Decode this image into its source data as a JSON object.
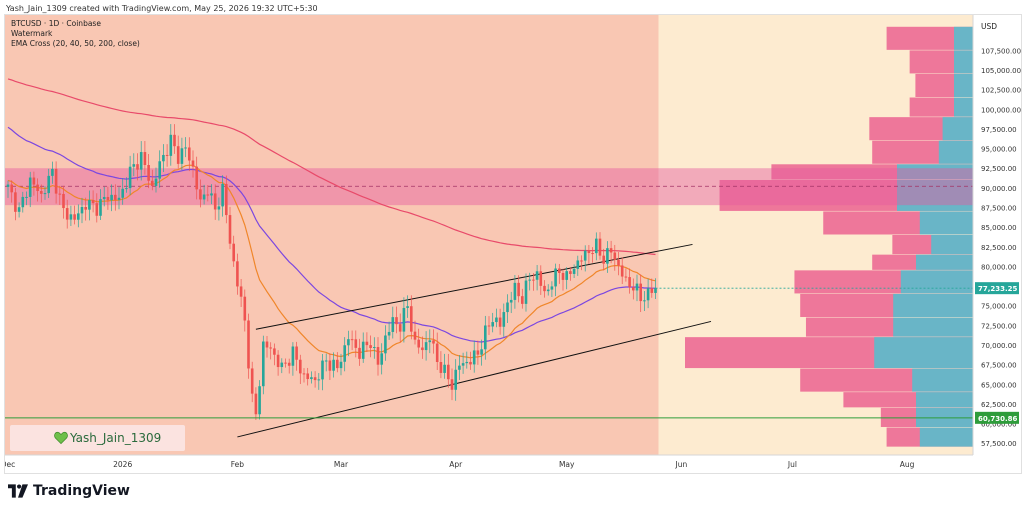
{
  "header": {
    "credit": "Yash_Jain_1309 created with TradingView.com, May 25, 2026 19:32 UTC+5:30"
  },
  "legend": {
    "symbol": "BTCUSD · 1D · Coinbase",
    "watermark": "Watermark",
    "indicator": "EMA Cross (20, 40, 50, 200, close)"
  },
  "watermark_badge": {
    "text": "Yash_Jain_1309"
  },
  "footer": {
    "brand": "TradingView"
  },
  "colors": {
    "past_bg": "#f9c7b3",
    "future_bg": "#fdebd0",
    "zone": "#e55ca0",
    "up": "#26a69a",
    "down": "#ef5350",
    "ema_fast": "#f0862a",
    "ema_slow": "#7b47e0",
    "ema_200": "#e84a6a",
    "support": "#2e9c3b",
    "vp_pink": "#ea5a8c",
    "vp_cyan": "#3cc9d6"
  },
  "chart_data": {
    "type": "candlestick",
    "symbol": "BTCUSD",
    "timeframe": "1D",
    "exchange": "Coinbase",
    "currency": "USD",
    "ylim": [
      56000,
      112000
    ],
    "y_ticks": [
      107500,
      105000,
      102500,
      100000,
      97500,
      95000,
      92500,
      90000,
      87500,
      85000,
      82500,
      80000,
      77500,
      75000,
      72500,
      70000,
      67500,
      65000,
      62500,
      60000,
      57500
    ],
    "y_tick_labels": [
      "107,500.00",
      "105,000.00",
      "102,500.00",
      "100,000.00",
      "97,500.00",
      "95,000.00",
      "92,500.00",
      "90,000.00",
      "87,500.00",
      "85,000.00",
      "82,500.00",
      "80,000.00",
      "77,500.00",
      "75,000.00",
      "72,500.00",
      "70,000.00",
      "67,500.00",
      "65,000.00",
      "62,500.00",
      "60,000.00",
      "57,500.00"
    ],
    "x_ticks": [
      {
        "label": "Dec",
        "day": 0
      },
      {
        "label": "2026",
        "day": 31
      },
      {
        "label": "Feb",
        "day": 62
      },
      {
        "label": "Mar",
        "day": 90
      },
      {
        "label": "Apr",
        "day": 121
      },
      {
        "label": "May",
        "day": 151
      },
      {
        "label": "Jun",
        "day": 182
      },
      {
        "label": "Jul",
        "day": 212
      },
      {
        "label": "Aug",
        "day": 243
      }
    ],
    "last_day": 175,
    "current_price": 77233.25,
    "current_price_label": "77,233.25",
    "support_price": 60730.86,
    "support_price_label": "60,730.86",
    "resistance_zone": [
      87800,
      92500
    ],
    "zone_midline": 90200,
    "channel": {
      "upper": [
        [
          67,
          72000
        ],
        [
          185,
          82800
        ]
      ],
      "lower": [
        [
          62,
          58300
        ],
        [
          190,
          73000
        ]
      ]
    },
    "anchors": [
      [
        0,
        90000
      ],
      [
        3,
        87000
      ],
      [
        6,
        91000
      ],
      [
        9,
        89000
      ],
      [
        12,
        92000
      ],
      [
        15,
        87000
      ],
      [
        18,
        86000
      ],
      [
        21,
        88000
      ],
      [
        24,
        87500
      ],
      [
        27,
        89000
      ],
      [
        30,
        88500
      ],
      [
        33,
        92000
      ],
      [
        36,
        94000
      ],
      [
        39,
        90000
      ],
      [
        41,
        93000
      ],
      [
        44,
        96000
      ],
      [
        46,
        94000
      ],
      [
        48,
        95000
      ],
      [
        50,
        92500
      ],
      [
        52,
        88000
      ],
      [
        54,
        90000
      ],
      [
        56,
        87000
      ],
      [
        58,
        90000
      ],
      [
        60,
        83000
      ],
      [
        62,
        78000
      ],
      [
        64,
        73000
      ],
      [
        66,
        63000
      ],
      [
        67,
        61000
      ],
      [
        69,
        70000
      ],
      [
        71,
        69500
      ],
      [
        74,
        67000
      ],
      [
        77,
        69000
      ],
      [
        80,
        66000
      ],
      [
        83,
        65500
      ],
      [
        86,
        68000
      ],
      [
        89,
        67000
      ],
      [
        92,
        71000
      ],
      [
        95,
        69000
      ],
      [
        98,
        70500
      ],
      [
        100,
        67500
      ],
      [
        102,
        71000
      ],
      [
        104,
        73000
      ],
      [
        106,
        72500
      ],
      [
        108,
        75000
      ],
      [
        110,
        70000
      ],
      [
        112,
        69500
      ],
      [
        114,
        71000
      ],
      [
        116,
        68000
      ],
      [
        118,
        66500
      ],
      [
        120,
        65000
      ],
      [
        122,
        67500
      ],
      [
        125,
        68000
      ],
      [
        127,
        69000
      ],
      [
        129,
        71500
      ],
      [
        131,
        73500
      ],
      [
        133,
        72500
      ],
      [
        135,
        75500
      ],
      [
        137,
        77000
      ],
      [
        139,
        76000
      ],
      [
        141,
        78500
      ],
      [
        143,
        79000
      ],
      [
        145,
        76500
      ],
      [
        147,
        78000
      ],
      [
        149,
        79500
      ],
      [
        151,
        78500
      ],
      [
        153,
        80000
      ],
      [
        155,
        81000
      ],
      [
        157,
        82000
      ],
      [
        159,
        82500
      ],
      [
        161,
        81000
      ],
      [
        163,
        82000
      ],
      [
        165,
        80000
      ],
      [
        167,
        78000
      ],
      [
        169,
        77500
      ],
      [
        171,
        76000
      ],
      [
        173,
        76500
      ],
      [
        175,
        77233
      ]
    ],
    "volume_profile": [
      {
        "low": 57000,
        "high": 59500,
        "pink": 0.3,
        "cyan": 0.28
      },
      {
        "low": 59500,
        "high": 62000,
        "pink": 0.32,
        "cyan": 0.3
      },
      {
        "low": 62000,
        "high": 64000,
        "pink": 0.45,
        "cyan": 0.3
      },
      {
        "low": 64000,
        "high": 67000,
        "pink": 0.6,
        "cyan": 0.32
      },
      {
        "low": 67000,
        "high": 71000,
        "pink": 1.0,
        "cyan": 0.52
      },
      {
        "low": 71000,
        "high": 73500,
        "pink": 0.58,
        "cyan": 0.42
      },
      {
        "low": 73500,
        "high": 76500,
        "pink": 0.6,
        "cyan": 0.42
      },
      {
        "low": 76500,
        "high": 79500,
        "pink": 0.62,
        "cyan": 0.38
      },
      {
        "low": 79500,
        "high": 81500,
        "pink": 0.35,
        "cyan": 0.3
      },
      {
        "low": 81500,
        "high": 84000,
        "pink": 0.28,
        "cyan": 0.22
      },
      {
        "low": 84000,
        "high": 87000,
        "pink": 0.52,
        "cyan": 0.28
      },
      {
        "low": 87000,
        "high": 91000,
        "pink": 0.88,
        "cyan": 0.4
      },
      {
        "low": 91000,
        "high": 93000,
        "pink": 0.7,
        "cyan": 0.4
      },
      {
        "low": 93000,
        "high": 96000,
        "pink": 0.35,
        "cyan": 0.18
      },
      {
        "low": 96000,
        "high": 99000,
        "pink": 0.36,
        "cyan": 0.16
      },
      {
        "low": 99000,
        "high": 101500,
        "pink": 0.22,
        "cyan": 0.1
      },
      {
        "low": 101500,
        "high": 104500,
        "pink": 0.2,
        "cyan": 0.1
      },
      {
        "low": 104500,
        "high": 107500,
        "pink": 0.22,
        "cyan": 0.1
      },
      {
        "low": 107500,
        "high": 110500,
        "pink": 0.3,
        "cyan": 0.1
      }
    ]
  }
}
